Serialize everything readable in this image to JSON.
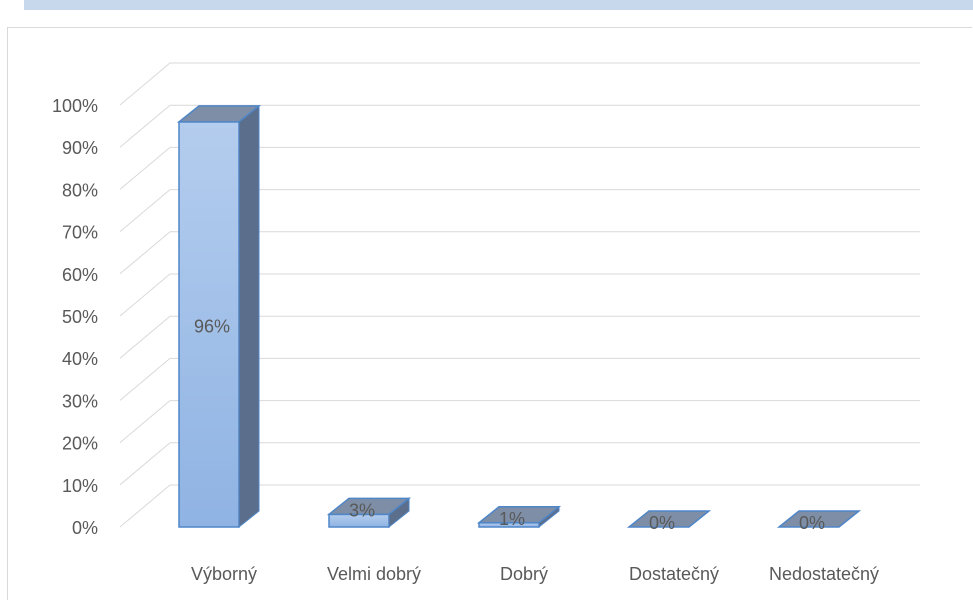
{
  "chart_data": {
    "type": "bar",
    "three_d": true,
    "categories": [
      "Výborný",
      "Velmi dobrý",
      "Dobrý",
      "Dostatečný",
      "Nedostatečný"
    ],
    "values": [
      96,
      3,
      1,
      0,
      0
    ],
    "data_labels": [
      "96%",
      "3%",
      "1%",
      "0%",
      "0%"
    ],
    "y_ticks": [
      "0%",
      "10%",
      "20%",
      "30%",
      "40%",
      "50%",
      "60%",
      "70%",
      "80%",
      "90%",
      "100%"
    ],
    "ylim": [
      0,
      100
    ],
    "grid": true,
    "colors": {
      "bar_front_top": "#b4cdee",
      "bar_front_bottom": "#8fb3e3",
      "bar_side": "#5b6f8c",
      "bar_top": "#7d8ea6",
      "bar_edge": "#4f86c8",
      "grid": "#d9d9d9",
      "text": "#595959",
      "topband": "#c8d8ec"
    }
  }
}
